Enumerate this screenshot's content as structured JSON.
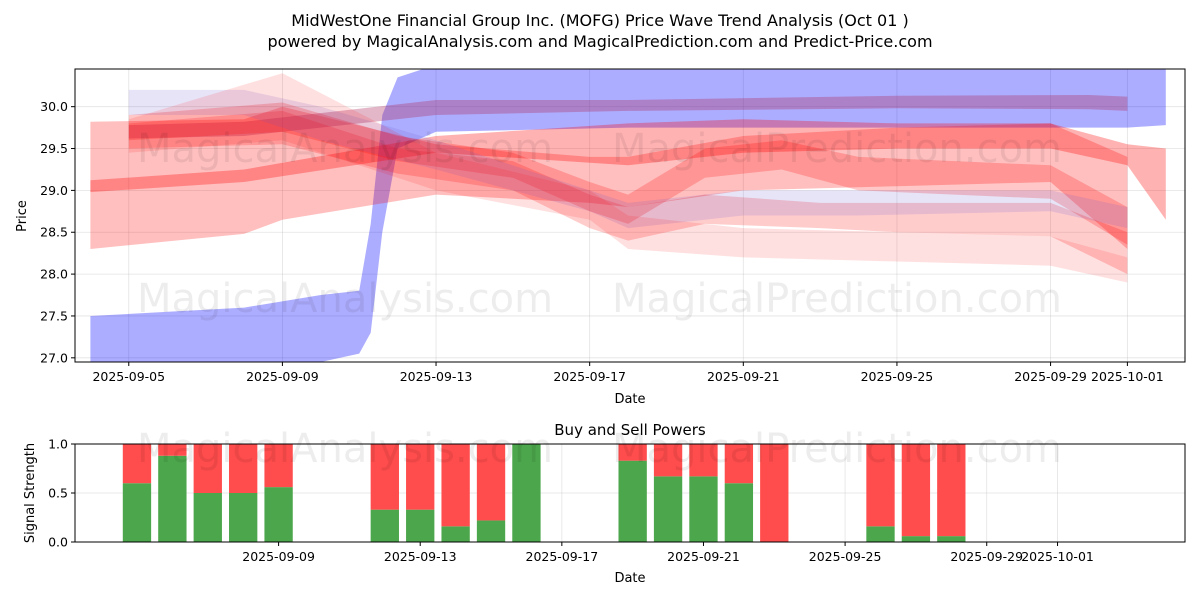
{
  "title_line1": "MidWestOne Financial Group Inc. (MOFG) Price Wave Trend Analysis (Oct 01 )",
  "title_line2": "powered by MagicalAnalysis.com and MagicalPrediction.com and Predict-Price.com",
  "watermarks": [
    "MagicalAnalysis.com",
    "MagicalPrediction.com"
  ],
  "colors": {
    "blue": "#0000ff",
    "red": "#ff0000",
    "buy": "#4ca64c",
    "sell": "#ff4c4c"
  },
  "chart_data": [
    {
      "type": "line",
      "title": "",
      "xlabel": "Date",
      "ylabel": "Price",
      "x_ticks": [
        "2025-09-05",
        "2025-09-09",
        "2025-09-13",
        "2025-09-17",
        "2025-09-21",
        "2025-09-25",
        "2025-09-29",
        "2025-10-01"
      ],
      "y_ticks": [
        "27.0",
        "27.5",
        "28.0",
        "28.5",
        "29.0",
        "29.5",
        "30.0"
      ],
      "xlim": [
        "2025-09-03.6",
        "2025-10-02.5"
      ],
      "ylim": [
        26.95,
        30.45
      ],
      "series": [
        {
          "name": "blue-wave",
          "color": "#0000ff",
          "opacity": 0.32,
          "x": [
            "2025-09-04",
            "2025-09-08",
            "2025-09-10",
            "2025-09-11",
            "2025-09-11.3",
            "2025-09-11.6",
            "2025-09-12",
            "2025-09-13",
            "2025-09-18",
            "2025-09-25",
            "2025-09-30",
            "2025-10-01",
            "2025-10-02"
          ],
          "lower": [
            26.8,
            26.85,
            26.95,
            27.05,
            27.3,
            28.5,
            29.5,
            29.7,
            29.75,
            29.75,
            29.75,
            29.75,
            29.78
          ],
          "upper": [
            27.5,
            27.6,
            27.75,
            27.8,
            28.6,
            29.9,
            30.35,
            30.5,
            30.5,
            30.5,
            30.5,
            30.5,
            30.5
          ]
        },
        {
          "name": "red-band-a",
          "color": "#ff0000",
          "opacity": 0.25,
          "x": [
            "2025-09-04",
            "2025-09-08",
            "2025-09-09",
            "2025-09-13",
            "2025-09-17",
            "2025-09-18",
            "2025-09-21",
            "2025-09-25",
            "2025-09-29",
            "2025-10-01"
          ],
          "lower": [
            28.3,
            28.48,
            28.65,
            28.95,
            28.85,
            28.8,
            29.0,
            29.05,
            29.1,
            28.3
          ],
          "upper": [
            29.82,
            29.85,
            30.0,
            29.55,
            29.4,
            29.4,
            29.65,
            29.75,
            29.8,
            29.4
          ]
        },
        {
          "name": "red-band-b",
          "color": "#ff0000",
          "opacity": 0.3,
          "x": [
            "2025-09-04",
            "2025-09-08",
            "2025-09-13",
            "2025-09-18",
            "2025-09-21",
            "2025-09-25",
            "2025-09-29",
            "2025-10-01",
            "2025-10-02"
          ],
          "lower": [
            28.98,
            29.1,
            29.45,
            29.3,
            29.45,
            29.5,
            29.5,
            29.3,
            28.65
          ],
          "upper": [
            29.12,
            29.25,
            29.65,
            29.8,
            29.85,
            29.8,
            29.8,
            29.55,
            29.5
          ]
        },
        {
          "name": "purple-band",
          "color": "#b03060",
          "opacity": 0.35,
          "x": [
            "2025-09-05",
            "2025-09-08",
            "2025-09-13",
            "2025-09-18",
            "2025-09-25",
            "2025-09-30",
            "2025-10-01"
          ],
          "lower": [
            29.62,
            29.65,
            29.9,
            29.95,
            29.98,
            29.97,
            29.95
          ],
          "upper": [
            29.78,
            29.82,
            30.08,
            30.08,
            30.13,
            30.14,
            30.12
          ]
        },
        {
          "name": "wave-c",
          "color": "#ff0000",
          "opacity": 0.2,
          "x": [
            "2025-09-05",
            "2025-09-09",
            "2025-09-12",
            "2025-09-15",
            "2025-09-17",
            "2025-09-18",
            "2025-09-20",
            "2025-09-23",
            "2025-09-25",
            "2025-09-29",
            "2025-10-01"
          ],
          "lower": [
            29.5,
            29.55,
            29.2,
            29.0,
            28.55,
            28.4,
            28.6,
            28.55,
            28.5,
            28.45,
            28.0
          ],
          "upper": [
            29.8,
            29.95,
            29.5,
            29.35,
            28.95,
            28.8,
            28.95,
            28.85,
            28.85,
            28.85,
            28.5
          ]
        },
        {
          "name": "wave-d",
          "color": "#ff0000",
          "opacity": 0.22,
          "x": [
            "2025-09-05",
            "2025-09-09",
            "2025-09-12",
            "2025-09-15",
            "2025-09-17",
            "2025-09-18",
            "2025-09-20",
            "2025-09-22",
            "2025-09-24",
            "2025-09-29",
            "2025-10-01"
          ],
          "lower": [
            29.6,
            29.7,
            29.35,
            29.15,
            28.75,
            28.6,
            29.15,
            29.25,
            29.0,
            28.9,
            28.35
          ],
          "upper": [
            29.9,
            30.05,
            29.65,
            29.45,
            29.1,
            28.95,
            29.5,
            29.6,
            29.4,
            29.3,
            28.8
          ]
        },
        {
          "name": "wave-e",
          "color": "#6a5acd",
          "opacity": 0.16,
          "x": [
            "2025-09-05",
            "2025-09-08",
            "2025-09-10",
            "2025-09-13",
            "2025-09-17",
            "2025-09-18",
            "2025-09-21",
            "2025-09-24",
            "2025-09-29",
            "2025-10-01"
          ],
          "lower": [
            29.9,
            29.9,
            29.6,
            29.25,
            28.75,
            28.55,
            28.7,
            28.7,
            28.75,
            28.55
          ],
          "upper": [
            30.2,
            30.2,
            30.0,
            29.6,
            29.0,
            28.85,
            29.0,
            29.0,
            29.0,
            28.8
          ]
        },
        {
          "name": "wave-f",
          "color": "#ff0000",
          "opacity": 0.12,
          "x": [
            "2025-09-05",
            "2025-09-09",
            "2025-09-13",
            "2025-09-17",
            "2025-09-18",
            "2025-09-21",
            "2025-09-25",
            "2025-09-29",
            "2025-10-01"
          ],
          "lower": [
            29.45,
            29.6,
            29.0,
            28.65,
            28.3,
            28.2,
            28.15,
            28.1,
            27.9
          ],
          "upper": [
            29.85,
            30.4,
            29.45,
            29.0,
            28.7,
            28.55,
            28.5,
            28.45,
            28.2
          ]
        }
      ]
    },
    {
      "type": "bar",
      "stacked": true,
      "title": "Buy and Sell Powers",
      "xlabel": "Date",
      "ylabel": "Signal Strength",
      "x_ticks": [
        "2025-09-09",
        "2025-09-13",
        "2025-09-17",
        "2025-09-21",
        "2025-09-25",
        "2025-09-29",
        "2025-10-01"
      ],
      "y_ticks": [
        "0.0",
        "0.5",
        "1.0"
      ],
      "ylim": [
        0,
        1
      ],
      "categories": [
        "2025-09-05",
        "2025-09-06",
        "2025-09-07",
        "2025-09-08",
        "2025-09-09",
        "2025-09-12",
        "2025-09-13",
        "2025-09-14",
        "2025-09-15",
        "2025-09-16",
        "2025-09-19",
        "2025-09-20",
        "2025-09-21",
        "2025-09-22",
        "2025-09-23",
        "2025-09-26",
        "2025-09-27",
        "2025-09-28"
      ],
      "series": [
        {
          "name": "Buy",
          "color": "#4ca64c",
          "values": [
            0.6,
            0.88,
            0.5,
            0.5,
            0.56,
            0.33,
            0.33,
            0.16,
            0.22,
            1.0,
            0.83,
            0.67,
            0.67,
            0.6,
            0.0,
            0.16,
            0.06,
            0.06
          ]
        },
        {
          "name": "Sell",
          "color": "#ff4c4c",
          "values": [
            0.4,
            0.12,
            0.5,
            0.5,
            0.44,
            0.67,
            0.67,
            0.84,
            0.78,
            0.0,
            0.17,
            0.33,
            0.33,
            0.4,
            1.0,
            0.84,
            0.94,
            0.94
          ]
        }
      ]
    }
  ]
}
